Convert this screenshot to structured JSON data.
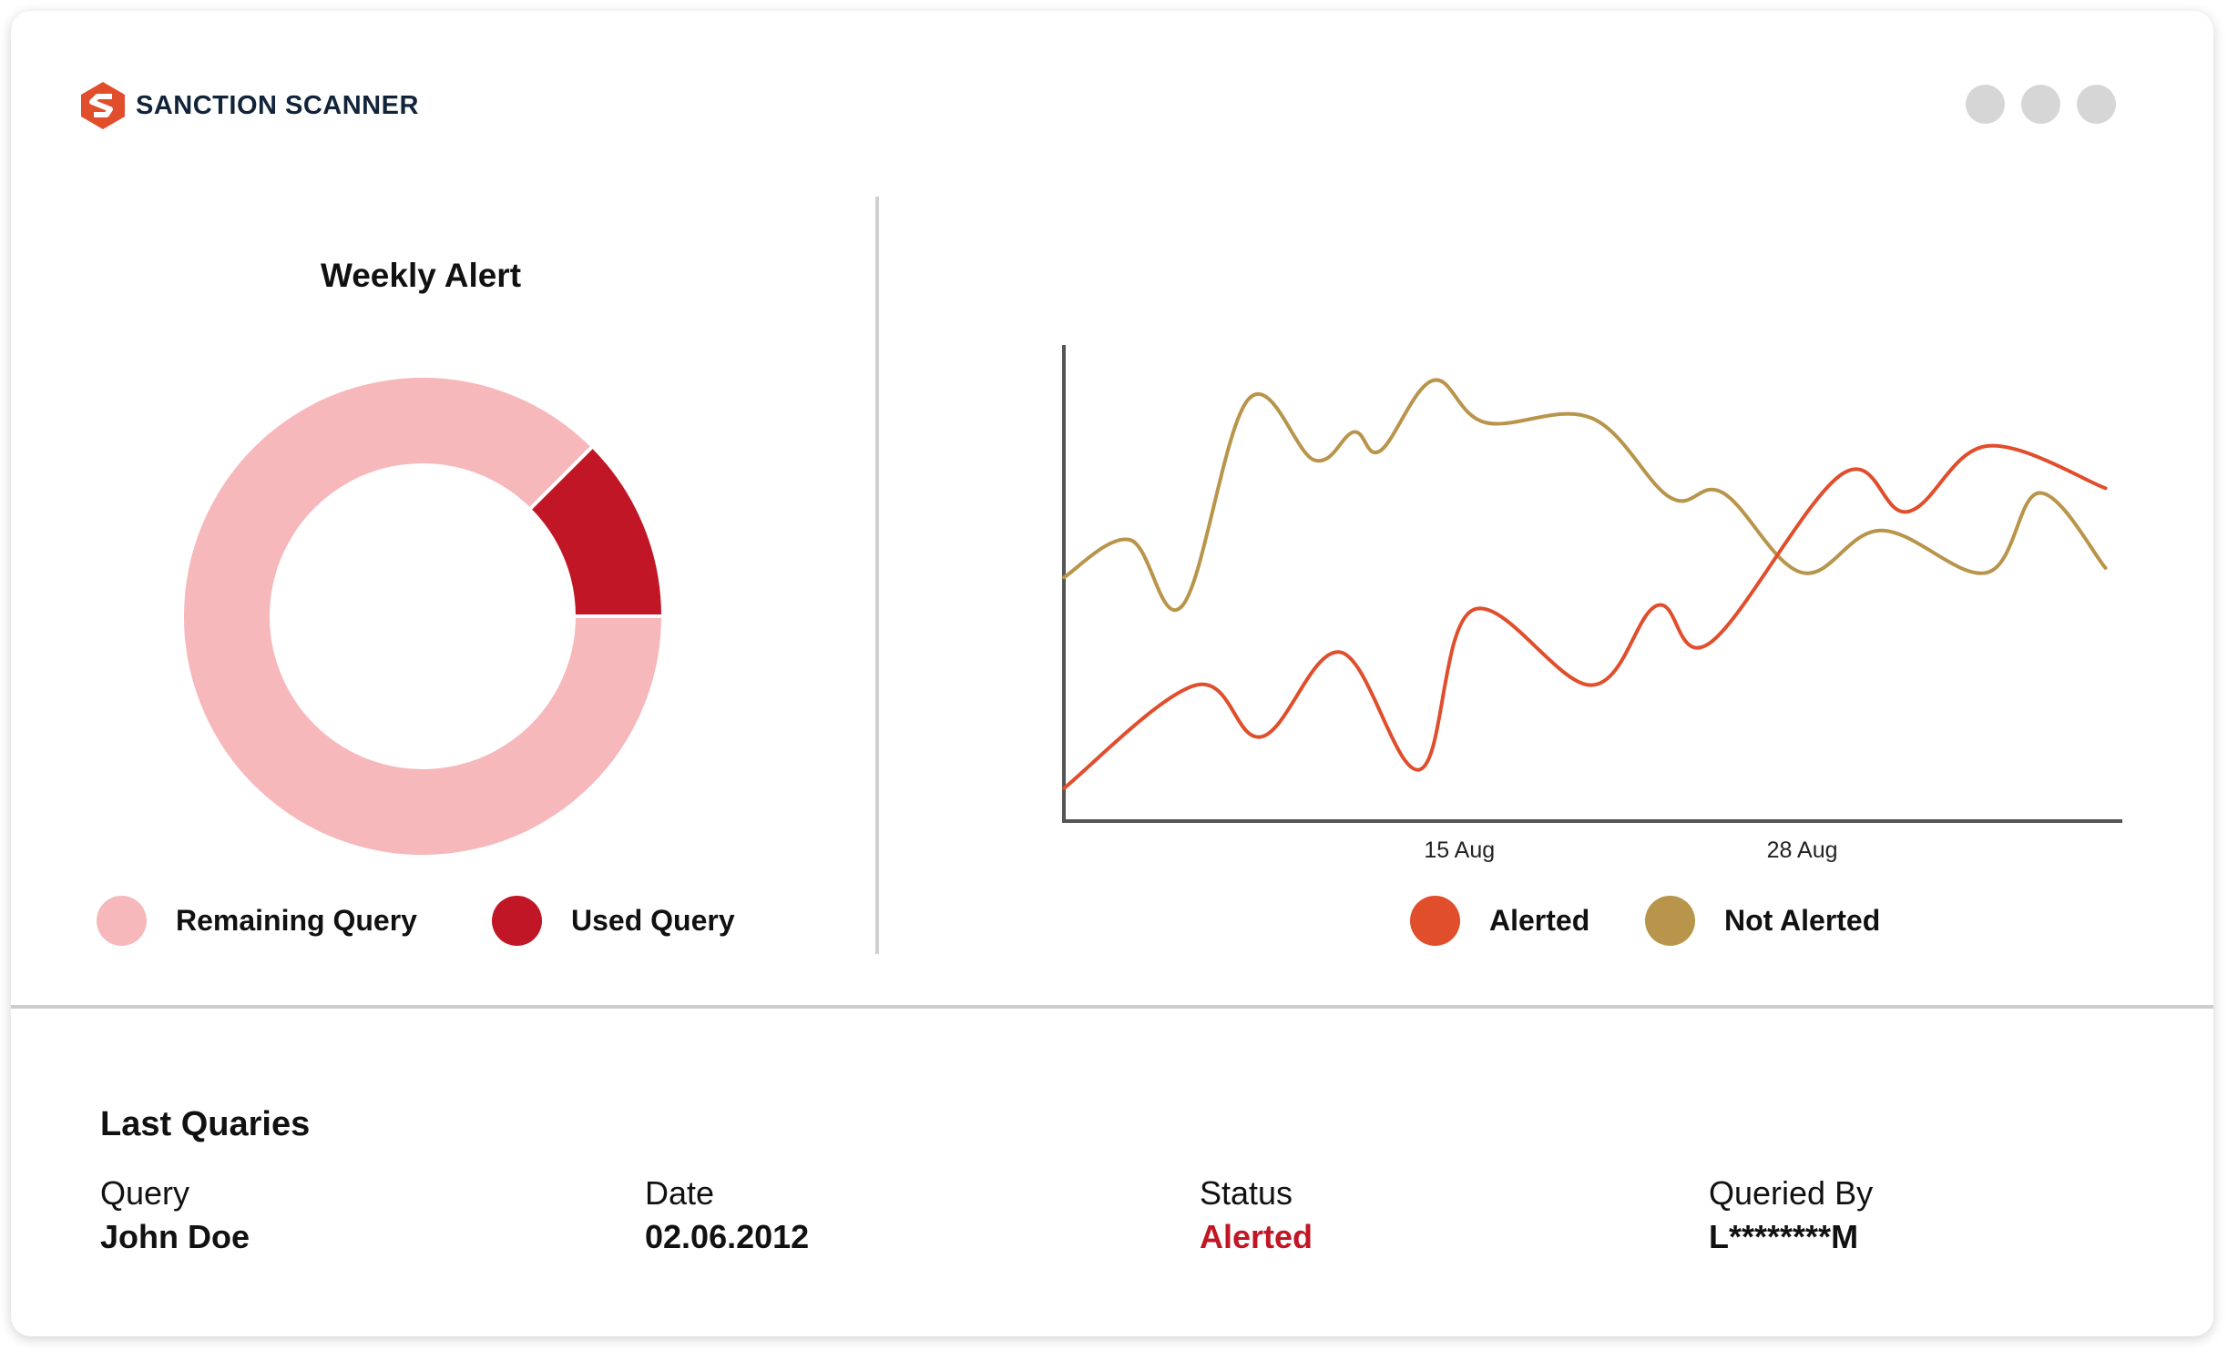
{
  "app": {
    "brand_name": "SANCTION SCANNER",
    "brand_colors": {
      "primary": "#e04e2c",
      "text": "#12243a"
    },
    "window_controls": [
      "window-dot",
      "window-dot",
      "window-dot"
    ]
  },
  "weekly_alert": {
    "title": "Weekly Alert",
    "legend": [
      {
        "label": "Remaining Query",
        "color": "#f7b8bc"
      },
      {
        "label": "Used Query",
        "color": "#c11626"
      }
    ]
  },
  "trend": {
    "legend": [
      {
        "label": "Alerted",
        "color": "#e04e2c"
      },
      {
        "label": "Not Alerted",
        "color": "#b8954a"
      }
    ]
  },
  "chart_data": [
    {
      "type": "pie",
      "title": "Weekly Alert",
      "donut": true,
      "labels": [
        "Remaining Query",
        "Used Query"
      ],
      "values": [
        87.5,
        12.5
      ],
      "colors": [
        "#f7b8bc",
        "#c11626"
      ]
    },
    {
      "type": "line",
      "title": "",
      "x_tick_labels": [
        {
          "label": "15 Aug",
          "x": 15
        },
        {
          "label": "28 Aug",
          "x": 28
        }
      ],
      "xlim": [
        0,
        40
      ],
      "ylim": [
        0,
        100
      ],
      "grid": false,
      "legend_position": "bottom",
      "series": [
        {
          "name": "Alerted",
          "color": "#e04e2c",
          "x": [
            0,
            5,
            7.5,
            10.5,
            13.5,
            15.5,
            20,
            22.5,
            24.5,
            29.5,
            32,
            35,
            39.5
          ],
          "y": [
            7,
            29,
            18,
            36,
            11,
            45,
            29,
            46,
            38,
            74,
            66,
            80,
            71
          ]
        },
        {
          "name": "Not Alerted",
          "color": "#b8954a",
          "x": [
            0,
            2.5,
            4.5,
            7,
            9.5,
            11,
            12,
            14,
            16,
            20,
            23,
            25,
            28,
            31,
            35,
            37,
            39.5
          ],
          "y": [
            52,
            60,
            46,
            90,
            77,
            83,
            79,
            94,
            85,
            86,
            69,
            70,
            53,
            62,
            53,
            70,
            54
          ]
        }
      ]
    }
  ],
  "last_queries": {
    "title": "Last Quaries",
    "columns": [
      {
        "header": "Query",
        "value": "John Doe"
      },
      {
        "header": "Date",
        "value": "02.06.2012"
      },
      {
        "header": "Status",
        "value": "Alerted"
      },
      {
        "header": "Queried By",
        "value": "L********M"
      }
    ]
  }
}
